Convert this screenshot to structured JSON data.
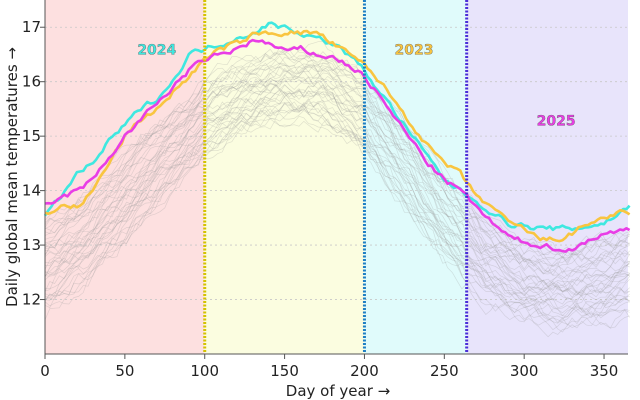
{
  "chart_data": {
    "type": "line",
    "xlabel": "Day of year →",
    "ylabel": "Daily global mean temperatures →",
    "xlim": [
      0,
      365
    ],
    "ylim": [
      11,
      17.5
    ],
    "xticks": [
      0,
      50,
      100,
      150,
      200,
      250,
      300,
      350
    ],
    "yticks": [
      12,
      13,
      14,
      15,
      16,
      17
    ],
    "grid": "horizontal dashed",
    "background_bands": [
      {
        "from": 0,
        "to": 100,
        "color": "#fde0e0"
      },
      {
        "from": 100,
        "to": 200,
        "color": "#fbfde0"
      },
      {
        "from": 200,
        "to": 264,
        "color": "#e0fbfb"
      },
      {
        "from": 264,
        "to": 365,
        "color": "#e8e4fb"
      }
    ],
    "vertical_markers": [
      {
        "x": 100,
        "color": "#d4c200"
      },
      {
        "x": 200,
        "color": "#1e7fc4"
      },
      {
        "x": 264,
        "color": "#4a2fd8"
      }
    ],
    "series": [
      {
        "name": "2024",
        "color": "#3fe8e0",
        "label_pos": [
          70,
          16.5
        ],
        "x": [
          0,
          10,
          20,
          30,
          40,
          50,
          60,
          70,
          80,
          90,
          100,
          110,
          120,
          130,
          140,
          150,
          160,
          170,
          180,
          190,
          200,
          210,
          220,
          230,
          240,
          250,
          260,
          270,
          280,
          290,
          300,
          310,
          320,
          330,
          340,
          350,
          360,
          366
        ],
        "values": [
          13.5,
          13.9,
          14.3,
          14.5,
          14.9,
          15.2,
          15.5,
          15.7,
          16.0,
          16.5,
          16.6,
          16.7,
          16.8,
          16.9,
          17.05,
          17.0,
          16.9,
          16.8,
          16.7,
          16.5,
          16.2,
          15.8,
          15.4,
          15.0,
          14.6,
          14.2,
          14.0,
          13.8,
          13.6,
          13.4,
          13.35,
          13.3,
          13.3,
          13.3,
          13.35,
          13.4,
          13.6,
          13.7
        ]
      },
      {
        "name": "2023",
        "color": "#f9c540",
        "label_pos": [
          231,
          16.5
        ],
        "x": [
          0,
          10,
          20,
          30,
          40,
          50,
          60,
          70,
          80,
          90,
          100,
          110,
          120,
          130,
          140,
          150,
          160,
          170,
          180,
          190,
          200,
          210,
          220,
          230,
          240,
          250,
          260,
          270,
          280,
          290,
          300,
          310,
          320,
          330,
          340,
          350,
          360,
          366
        ],
        "values": [
          13.6,
          13.7,
          13.7,
          14.0,
          14.5,
          15.0,
          15.3,
          15.5,
          15.8,
          16.1,
          16.4,
          16.6,
          16.7,
          16.85,
          16.9,
          16.9,
          16.9,
          16.9,
          16.7,
          16.5,
          16.3,
          16.0,
          15.6,
          15.2,
          14.8,
          14.5,
          14.3,
          13.9,
          13.7,
          13.4,
          13.3,
          13.1,
          13.1,
          13.2,
          13.4,
          13.5,
          13.6,
          13.5
        ]
      },
      {
        "name": "2025",
        "color": "#e93de6",
        "label_pos": [
          320,
          15.2
        ],
        "x": [
          0,
          10,
          20,
          30,
          40,
          50,
          60,
          70,
          80,
          90,
          100,
          110,
          120,
          130,
          140,
          150,
          160,
          170,
          180,
          190,
          200,
          210,
          220,
          230,
          240,
          250,
          260,
          270,
          280,
          290,
          300,
          310,
          320,
          330,
          340,
          350,
          360,
          366
        ],
        "values": [
          13.75,
          13.85,
          14.0,
          14.2,
          14.6,
          15.0,
          15.3,
          15.6,
          15.9,
          16.2,
          16.4,
          16.5,
          16.6,
          16.75,
          16.7,
          16.55,
          16.6,
          16.5,
          16.45,
          16.3,
          16.1,
          15.7,
          15.3,
          14.9,
          14.5,
          14.2,
          14.0,
          13.7,
          13.4,
          13.15,
          13.05,
          13.0,
          12.95,
          12.9,
          13.1,
          13.2,
          13.25,
          13.3
        ]
      }
    ],
    "background_years": {
      "color": "#9a9a9a",
      "count": 40,
      "x": [
        0,
        25,
        50,
        75,
        100,
        125,
        150,
        175,
        200,
        225,
        250,
        275,
        300,
        325,
        350,
        366
      ],
      "mean": [
        12.6,
        13.1,
        13.9,
        14.6,
        15.3,
        15.75,
        15.95,
        15.9,
        15.4,
        14.5,
        13.5,
        12.75,
        12.35,
        12.2,
        12.35,
        12.5
      ],
      "spread": [
        1.7,
        1.6,
        1.7,
        1.5,
        1.4,
        1.3,
        1.3,
        1.3,
        1.4,
        1.6,
        1.6,
        1.5,
        1.4,
        1.4,
        1.5,
        1.6
      ]
    }
  }
}
